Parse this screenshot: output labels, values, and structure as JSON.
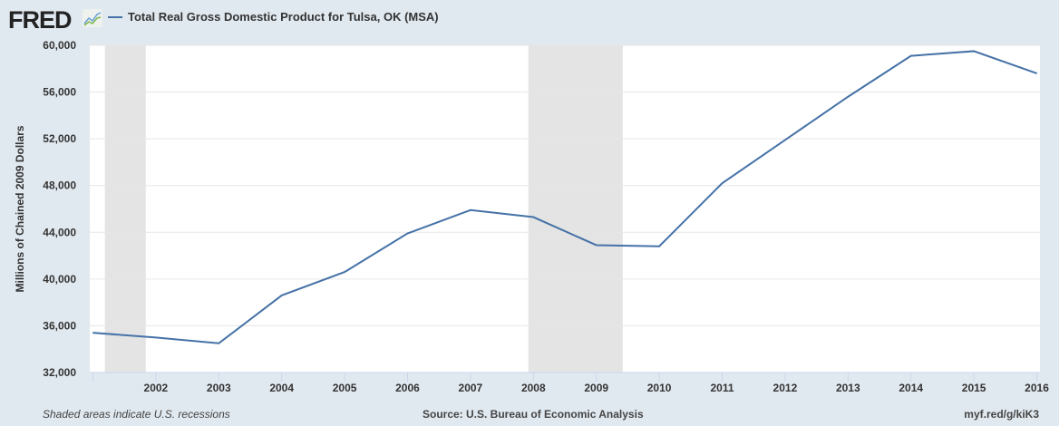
{
  "header": {
    "logo": "FRED",
    "series_title": "Total Real Gross Domestic Product for Tulsa, OK (MSA)"
  },
  "footer": {
    "left": "Shaded areas indicate U.S. recessions",
    "center": "Source: U.S. Bureau of Economic Analysis",
    "right": "myf.red/g/kiK3"
  },
  "chart_data": {
    "type": "line",
    "title": "Total Real Gross Domestic Product for Tulsa, OK (MSA)",
    "xlabel": "",
    "ylabel": "Millions of Chained 2009 Dollars",
    "ylim": [
      32000,
      60000
    ],
    "xlim": [
      2000.95,
      2016.05
    ],
    "yticks": [
      32000,
      36000,
      40000,
      44000,
      48000,
      52000,
      56000,
      60000
    ],
    "ytick_labels": [
      "32,000",
      "36,000",
      "40,000",
      "44,000",
      "48,000",
      "52,000",
      "56,000",
      "60,000"
    ],
    "xticks": [
      2002,
      2003,
      2004,
      2005,
      2006,
      2007,
      2008,
      2009,
      2010,
      2011,
      2012,
      2013,
      2014,
      2015,
      2016
    ],
    "xtick_labels": [
      "2002",
      "2003",
      "2004",
      "2005",
      "2006",
      "2007",
      "2008",
      "2009",
      "2010",
      "2011",
      "2012",
      "2013",
      "2014",
      "2015",
      "2016"
    ],
    "grid": true,
    "color": "#4572a7",
    "recessions": [
      [
        2001.19,
        2001.84
      ],
      [
        2007.92,
        2009.42
      ]
    ],
    "series": [
      {
        "name": "Total Real Gross Domestic Product for Tulsa, OK (MSA)",
        "x": [
          2001,
          2002,
          2003,
          2004,
          2005,
          2006,
          2007,
          2008,
          2009,
          2010,
          2011,
          2012,
          2013,
          2014,
          2015,
          2016
        ],
        "values": [
          35400,
          35000,
          34500,
          38600,
          40600,
          43900,
          45900,
          45300,
          42900,
          42800,
          48200,
          51900,
          55600,
          59100,
          59500,
          57600
        ]
      }
    ]
  }
}
